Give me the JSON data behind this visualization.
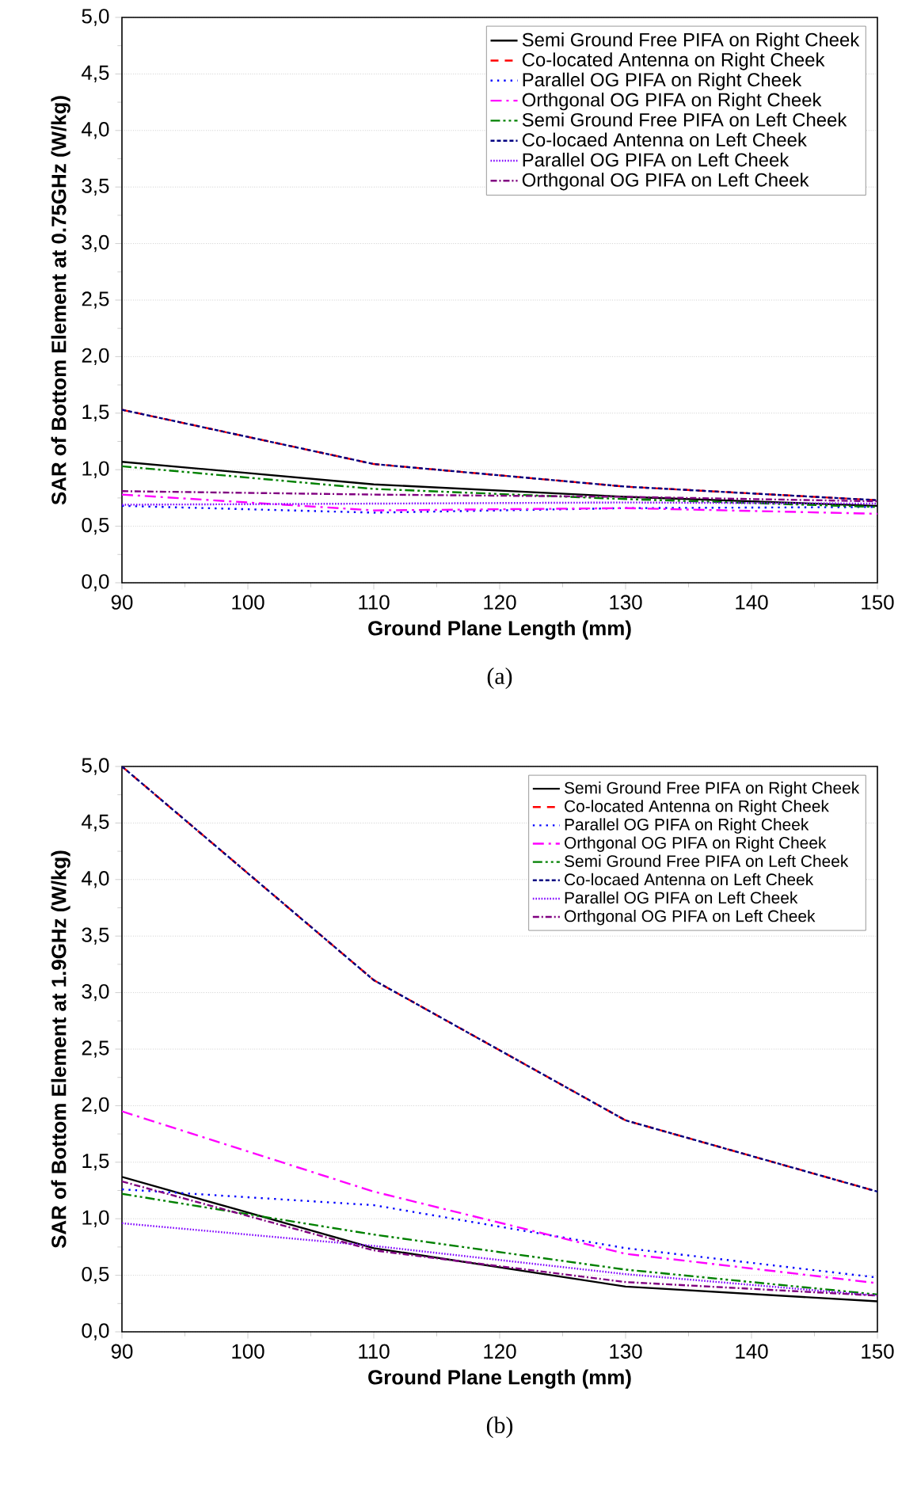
{
  "chart_data": [
    {
      "type": "line",
      "xlabel": "Ground Plane Length (mm)",
      "ylabel": "SAR of Bottom Element at 0.75GHz (W/kg)",
      "annotations": [
        "(a)"
      ],
      "x": [
        90,
        110,
        130,
        150
      ],
      "xlim": [
        90,
        150
      ],
      "xticks": [
        90,
        100,
        110,
        120,
        130,
        140,
        150
      ],
      "ylim": [
        0,
        5
      ],
      "yticks": [
        {
          "value": 0,
          "label": "0,0"
        },
        {
          "value": 0.5,
          "label": "0,5"
        },
        {
          "value": 1,
          "label": "1,0"
        },
        {
          "value": 1.5,
          "label": "1,5"
        },
        {
          "value": 2,
          "label": "2,0"
        },
        {
          "value": 2.5,
          "label": "2,5"
        },
        {
          "value": 3,
          "label": "3,0"
        },
        {
          "value": 3.5,
          "label": "3,5"
        },
        {
          "value": 4,
          "label": "4,0"
        },
        {
          "value": 4.5,
          "label": "4,5"
        },
        {
          "value": 5,
          "label": "5,0"
        }
      ],
      "grid": "y",
      "legend": "top right",
      "marker": "none",
      "series": [
        {
          "name": "Semi Ground Free PIFA on Right Cheek",
          "color": "#000000",
          "line_style": "solid",
          "values": [
            1.07,
            0.87,
            0.76,
            0.68
          ]
        },
        {
          "name": "Co-located Antenna on Right Cheek",
          "color": "#ff0000",
          "line_style": "dashed",
          "values": [
            1.53,
            1.05,
            0.85,
            0.73
          ]
        },
        {
          "name": "Parallel OG PIFA on Right Cheek",
          "color": "#0000ff",
          "line_style": "dotted",
          "values": [
            0.68,
            0.62,
            0.66,
            0.67
          ]
        },
        {
          "name": "Orthgonal OG PIFA on Right Cheek",
          "color": "#ff00ff",
          "line_style": "dashdot",
          "values": [
            0.78,
            0.64,
            0.66,
            0.61
          ]
        },
        {
          "name": "Semi Ground Free PIFA on Left Cheek",
          "color": "#008000",
          "line_style": "dashdotdot",
          "values": [
            1.03,
            0.83,
            0.74,
            0.67
          ]
        },
        {
          "name": "Co-locaed Antenna on Left Cheek",
          "color": "#000080",
          "line_style": "densely dashed",
          "values": [
            1.53,
            1.05,
            0.85,
            0.73
          ]
        },
        {
          "name": "Parallel OG PIFA on Left Cheek",
          "color": "#8000ff",
          "line_style": "densely dotted",
          "values": [
            0.69,
            0.7,
            0.71,
            0.7
          ]
        },
        {
          "name": "Orthgonal OG PIFA on Left Cheek",
          "color": "#800080",
          "line_style": "densely dashdot",
          "values": [
            0.81,
            0.78,
            0.76,
            0.72
          ]
        }
      ]
    },
    {
      "type": "line",
      "xlabel": "Ground Plane Length (mm)",
      "ylabel": "SAR of Bottom Element at 1.9GHz (W/kg)",
      "annotations": [
        "(b)"
      ],
      "x": [
        90,
        110,
        130,
        150
      ],
      "xlim": [
        90,
        150
      ],
      "xticks": [
        90,
        100,
        110,
        120,
        130,
        140,
        150
      ],
      "ylim": [
        0,
        5
      ],
      "yticks": [
        {
          "value": 0,
          "label": "0,0"
        },
        {
          "value": 0.5,
          "label": "0,5"
        },
        {
          "value": 1,
          "label": "1,0"
        },
        {
          "value": 1.5,
          "label": "1,5"
        },
        {
          "value": 2,
          "label": "2,0"
        },
        {
          "value": 2.5,
          "label": "2,5"
        },
        {
          "value": 3,
          "label": "3,0"
        },
        {
          "value": 3.5,
          "label": "3,5"
        },
        {
          "value": 4,
          "label": "4,0"
        },
        {
          "value": 4.5,
          "label": "4,5"
        },
        {
          "value": 5,
          "label": "5,0"
        }
      ],
      "grid": "y",
      "legend": "top right",
      "marker": "none",
      "series": [
        {
          "name": "Semi Ground Free PIFA on Right Cheek",
          "color": "#000000",
          "line_style": "solid",
          "values": [
            1.37,
            0.74,
            0.4,
            0.27
          ]
        },
        {
          "name": "Co-located Antenna on Right Cheek",
          "color": "#ff0000",
          "line_style": "dashed",
          "values": [
            5.0,
            3.11,
            1.87,
            1.24
          ]
        },
        {
          "name": "Parallel OG PIFA on Right Cheek",
          "color": "#0000ff",
          "line_style": "dotted",
          "values": [
            1.26,
            1.12,
            0.74,
            0.48
          ]
        },
        {
          "name": "Orthgonal OG PIFA on Right Cheek",
          "color": "#ff00ff",
          "line_style": "dashdot",
          "values": [
            1.95,
            1.24,
            0.69,
            0.43
          ]
        },
        {
          "name": "Semi Ground Free PIFA on Left Cheek",
          "color": "#008000",
          "line_style": "dashdotdot",
          "values": [
            1.22,
            0.86,
            0.55,
            0.33
          ]
        },
        {
          "name": "Co-locaed Antenna on Left Cheek",
          "color": "#000080",
          "line_style": "densely dashed",
          "values": [
            5.0,
            3.11,
            1.87,
            1.24
          ]
        },
        {
          "name": "Parallel OG PIFA on Left Cheek",
          "color": "#8000ff",
          "line_style": "densely dotted",
          "values": [
            0.96,
            0.76,
            0.51,
            0.32
          ]
        },
        {
          "name": "Orthgonal OG PIFA on Left Cheek",
          "color": "#800080",
          "line_style": "densely dashdot",
          "values": [
            1.33,
            0.72,
            0.44,
            0.32
          ]
        }
      ]
    }
  ]
}
